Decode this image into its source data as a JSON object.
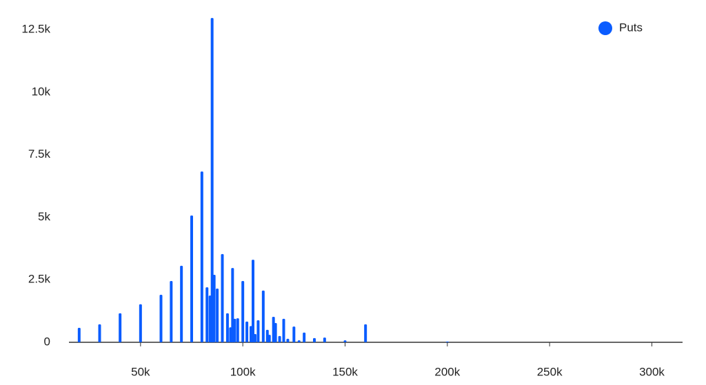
{
  "chart_data": {
    "type": "bar",
    "x": [
      20000,
      30000,
      40000,
      50000,
      60000,
      65000,
      70000,
      75000,
      80000,
      82500,
      84000,
      85000,
      86000,
      87500,
      90000,
      92500,
      94000,
      95000,
      96000,
      97500,
      100000,
      102000,
      104000,
      105000,
      106000,
      107500,
      110000,
      112000,
      113000,
      115000,
      116000,
      118000,
      120000,
      122000,
      125000,
      127500,
      130000,
      135000,
      140000,
      150000,
      160000,
      200000
    ],
    "series": [
      {
        "name": "Puts",
        "color": "#0a5cff",
        "values": [
          580,
          720,
          1160,
          1520,
          1900,
          2450,
          3060,
          5070,
          6830,
          2200,
          1870,
          12970,
          2700,
          2150,
          3530,
          1160,
          600,
          2970,
          940,
          960,
          2450,
          830,
          650,
          3300,
          330,
          880,
          2070,
          500,
          300,
          1020,
          770,
          250,
          940,
          140,
          630,
          80,
          390,
          170,
          190,
          80,
          720,
          30
        ]
      }
    ],
    "xlim": [
      15000,
      315000
    ],
    "xticks": [
      {
        "value": 50000,
        "label": "50k"
      },
      {
        "value": 100000,
        "label": "100k"
      },
      {
        "value": 150000,
        "label": "150k"
      },
      {
        "value": 200000,
        "label": "200k"
      },
      {
        "value": 250000,
        "label": "250k"
      },
      {
        "value": 300000,
        "label": "300k"
      }
    ],
    "ylim": [
      0,
      13000
    ],
    "yticks": [
      0,
      {
        "value": 2500,
        "label": "2.5k"
      },
      {
        "value": 5000,
        "label": "5k"
      },
      {
        "value": 7500,
        "label": "7.5k"
      },
      {
        "value": 10000,
        "label": "10k"
      },
      {
        "value": 12500,
        "label": "12.5k"
      }
    ],
    "legend": "top-right"
  }
}
